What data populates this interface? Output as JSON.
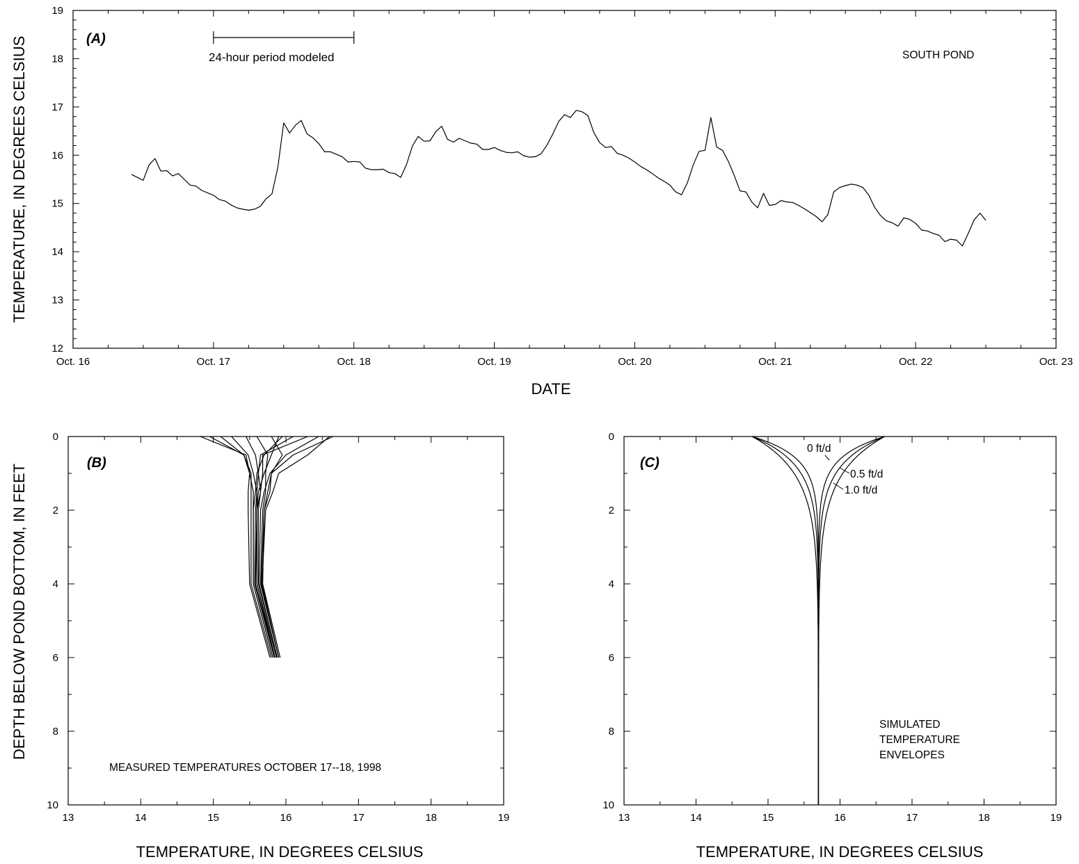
{
  "chart_data": [
    {
      "panel": "(A)",
      "type": "line",
      "annotation": "SOUTH POND",
      "xlabel": "DATE",
      "ylabel": "TEMPERATURE, IN DEGREES CELSIUS",
      "x_tick_labels": [
        "Oct. 16",
        "Oct. 17",
        "Oct. 18",
        "Oct. 19",
        "Oct. 20",
        "Oct. 21",
        "Oct. 22",
        "Oct. 23"
      ],
      "y_tick_labels": [
        "12",
        "13",
        "14",
        "15",
        "16",
        "17",
        "18",
        "19"
      ],
      "xlim": [
        "1998-10-16 00:00",
        "1998-10-23 00:00"
      ],
      "ylim": [
        12,
        19
      ],
      "modeled_period": {
        "label": "24-hour period modeled",
        "start": "1998-10-17 00:00",
        "end": "1998-10-18 00:00"
      },
      "series": [
        {
          "x_start": "1998-10-16 10:00",
          "x_step_hours": 1,
          "values": [
            15.6,
            15.54,
            15.48,
            15.8,
            15.93,
            15.67,
            15.68,
            15.57,
            15.62,
            15.5,
            15.38,
            15.36,
            15.27,
            15.22,
            15.17,
            15.08,
            15.05,
            14.97,
            14.91,
            14.88,
            14.86,
            14.88,
            14.94,
            15.1,
            15.2,
            15.75,
            16.67,
            16.46,
            16.62,
            16.72,
            16.44,
            16.36,
            16.24,
            16.07,
            16.07,
            16.02,
            15.97,
            15.86,
            15.87,
            15.86,
            15.73,
            15.7,
            15.7,
            15.71,
            15.64,
            15.62,
            15.54,
            15.81,
            16.19,
            16.39,
            16.29,
            16.3,
            16.49,
            16.6,
            16.33,
            16.27,
            16.35,
            16.3,
            16.25,
            16.23,
            16.12,
            16.12,
            16.16,
            16.1,
            16.06,
            16.05,
            16.07,
            15.99,
            15.96,
            15.97,
            16.03,
            16.21,
            16.44,
            16.7,
            16.84,
            16.78,
            16.93,
            16.9,
            16.82,
            16.47,
            16.26,
            16.16,
            16.18,
            16.04,
            16.0,
            15.94,
            15.86,
            15.77,
            15.7,
            15.62,
            15.53,
            15.46,
            15.38,
            15.24,
            15.18,
            15.43,
            15.8,
            16.08,
            16.1,
            16.78,
            16.17,
            16.1,
            15.87,
            15.58,
            15.26,
            15.24,
            15.03,
            14.91,
            15.21,
            14.96,
            14.98,
            15.06,
            15.03,
            15.02,
            14.96,
            14.89,
            14.81,
            14.73,
            14.62,
            14.77,
            15.24,
            15.33,
            15.37,
            15.4,
            15.38,
            15.33,
            15.17,
            14.92,
            14.75,
            14.64,
            14.6,
            14.53,
            14.7,
            14.67,
            14.59,
            14.45,
            14.43,
            14.38,
            14.34,
            14.21,
            14.26,
            14.24,
            14.12,
            14.38,
            14.66,
            14.8,
            14.65
          ]
        }
      ]
    },
    {
      "panel": "(B)",
      "type": "line",
      "annotation": "MEASURED TEMPERATURES OCTOBER 17--18, 1998",
      "xlabel": "TEMPERATURE, IN DEGREES CELSIUS",
      "ylabel": "DEPTH BELOW POND BOTTOM, IN FEET",
      "x_tick_labels": [
        "13",
        "14",
        "15",
        "16",
        "17",
        "18",
        "19"
      ],
      "y_tick_labels": [
        "0",
        "2",
        "4",
        "6",
        "8",
        "10"
      ],
      "xlim": [
        13,
        19
      ],
      "ylim": [
        10,
        0
      ],
      "depths": [
        0,
        0.5,
        1.0,
        1.5,
        2,
        4,
        6
      ],
      "profiles": [
        [
          14.82,
          15.45,
          15.5,
          15.55,
          15.55,
          15.55,
          15.82
        ],
        [
          14.95,
          15.42,
          15.52,
          15.52,
          15.52,
          15.52,
          15.8
        ],
        [
          15.1,
          15.42,
          15.5,
          15.48,
          15.48,
          15.5,
          15.78
        ],
        [
          15.25,
          15.48,
          15.55,
          15.6,
          15.6,
          15.6,
          15.85
        ],
        [
          15.45,
          15.58,
          15.62,
          15.65,
          15.62,
          15.62,
          15.88
        ],
        [
          15.6,
          15.75,
          15.72,
          15.72,
          15.68,
          15.65,
          15.9
        ],
        [
          15.8,
          15.95,
          15.8,
          15.78,
          15.7,
          15.68,
          15.92
        ],
        [
          15.9,
          15.8,
          15.7,
          15.62,
          15.6,
          15.58,
          15.85
        ],
        [
          15.95,
          15.7,
          15.6,
          15.58,
          15.55,
          15.55,
          15.82
        ],
        [
          16.1,
          15.65,
          15.62,
          15.6,
          15.58,
          15.57,
          15.84
        ],
        [
          16.3,
          15.68,
          15.68,
          15.65,
          15.6,
          15.6,
          15.87
        ],
        [
          16.45,
          16.0,
          15.78,
          15.7,
          15.65,
          15.63,
          15.88
        ],
        [
          16.6,
          16.3,
          15.9,
          15.82,
          15.72,
          15.67,
          15.9
        ],
        [
          16.65,
          16.1,
          15.8,
          15.75,
          15.7,
          15.66,
          15.9
        ]
      ]
    },
    {
      "panel": "(C)",
      "type": "line",
      "annotation": [
        "SIMULATED",
        "TEMPERATURE",
        "ENVELOPES"
      ],
      "xlabel": "TEMPERATURE, IN DEGREES CELSIUS",
      "x_tick_labels": [
        "13",
        "14",
        "15",
        "16",
        "17",
        "18",
        "19"
      ],
      "y_tick_labels": [
        "0",
        "2",
        "4",
        "6",
        "8",
        "10"
      ],
      "xlim": [
        13,
        19
      ],
      "ylim": [
        10,
        0
      ],
      "mean_temperature": 15.7,
      "surface_range": [
        14.78,
        16.62
      ],
      "envelopes": [
        {
          "label": "0 ft/d",
          "damping_depth_ft": 0.55
        },
        {
          "label": "0.5 ft/d",
          "damping_depth_ft": 0.75
        },
        {
          "label": "1.0 ft/d",
          "damping_depth_ft": 1.0
        }
      ]
    }
  ]
}
